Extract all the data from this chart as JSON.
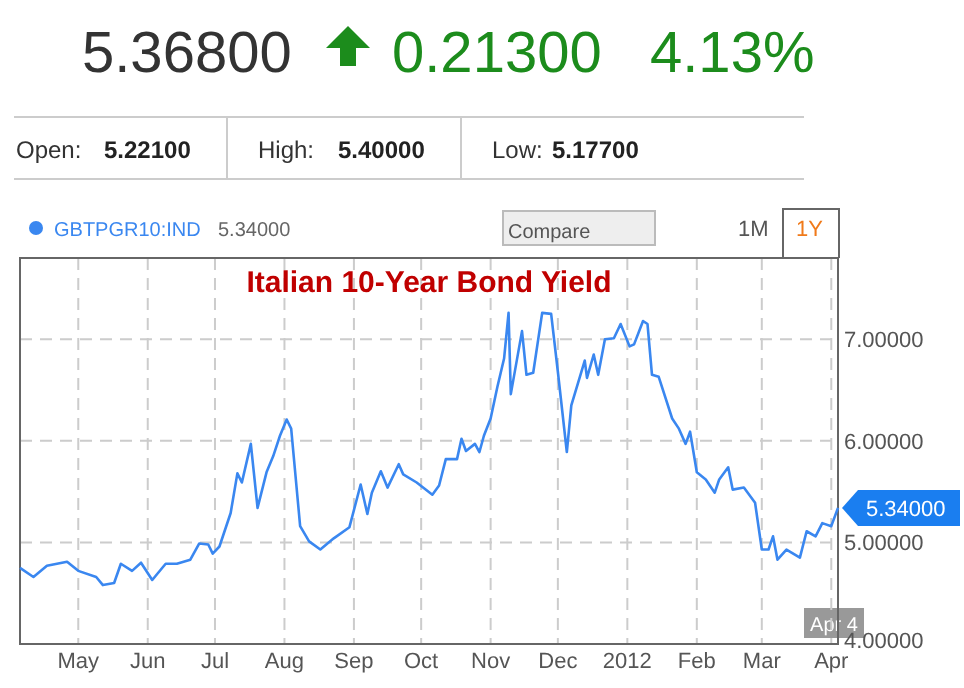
{
  "chart_data": {
    "type": "line",
    "title": "Italian 10-Year Bond Yield",
    "x": [
      "2011-04-05",
      "2011-04-11",
      "2011-04-17",
      "2011-04-26",
      "2011-05-01",
      "2011-05-09",
      "2011-05-12",
      "2011-05-17",
      "2011-05-20",
      "2011-05-25",
      "2011-05-29",
      "2011-06-03",
      "2011-06-09",
      "2011-06-14",
      "2011-06-20",
      "2011-06-24",
      "2011-06-28",
      "2011-06-30",
      "2011-07-03",
      "2011-07-08",
      "2011-07-11",
      "2011-07-13",
      "2011-07-17",
      "2011-07-20",
      "2011-07-24",
      "2011-07-27",
      "2011-07-30",
      "2011-08-02",
      "2011-08-04",
      "2011-08-08",
      "2011-08-12",
      "2011-08-17",
      "2011-08-23",
      "2011-08-30",
      "2011-09-04",
      "2011-09-07",
      "2011-09-09",
      "2011-09-13",
      "2011-09-16",
      "2011-09-21",
      "2011-09-23",
      "2011-09-29",
      "2011-10-06",
      "2011-10-09",
      "2011-10-12",
      "2011-10-17",
      "2011-10-19",
      "2011-10-21",
      "2011-10-25",
      "2011-10-27",
      "2011-10-29",
      "2011-11-01",
      "2011-11-04",
      "2011-11-07",
      "2011-11-09",
      "2011-11-10",
      "2011-11-15",
      "2011-11-17",
      "2011-11-20",
      "2011-11-24",
      "2011-11-28",
      "2011-12-01",
      "2011-12-05",
      "2011-12-07",
      "2011-12-13",
      "2011-12-14",
      "2011-12-17",
      "2011-12-19",
      "2011-12-22",
      "2011-12-26",
      "2011-12-29",
      "2012-01-02",
      "2012-01-04",
      "2012-01-08",
      "2012-01-10",
      "2012-01-12",
      "2012-01-15",
      "2012-01-21",
      "2012-01-24",
      "2012-01-27",
      "2012-01-29",
      "2012-02-01",
      "2012-02-05",
      "2012-02-09",
      "2012-02-11",
      "2012-02-15",
      "2012-02-17",
      "2012-02-22",
      "2012-02-27",
      "2012-03-01",
      "2012-03-04",
      "2012-03-06",
      "2012-03-08",
      "2012-03-12",
      "2012-03-18",
      "2012-03-21",
      "2012-03-25",
      "2012-03-28",
      "2012-04-01",
      "2012-04-04"
    ],
    "series": [
      {
        "name": "GBTPGR10:IND",
        "color": "#3a87f0",
        "values": [
          4.75,
          4.66,
          4.77,
          4.81,
          4.72,
          4.66,
          4.58,
          4.6,
          4.79,
          4.72,
          4.8,
          4.63,
          4.79,
          4.79,
          4.83,
          4.99,
          4.98,
          4.89,
          4.96,
          5.29,
          5.68,
          5.59,
          5.97,
          5.34,
          5.69,
          5.85,
          6.05,
          6.21,
          6.12,
          5.16,
          5.01,
          4.93,
          5.04,
          5.15,
          5.57,
          5.28,
          5.49,
          5.7,
          5.54,
          5.77,
          5.67,
          5.59,
          5.47,
          5.56,
          5.82,
          5.82,
          6.02,
          5.9,
          5.97,
          5.89,
          6.05,
          6.22,
          6.53,
          6.81,
          7.26,
          6.46,
          7.08,
          6.65,
          6.67,
          7.26,
          7.25,
          6.68,
          5.89,
          6.35,
          6.79,
          6.62,
          6.85,
          6.65,
          7.0,
          7.01,
          7.15,
          6.93,
          6.95,
          7.18,
          7.15,
          6.65,
          6.63,
          6.22,
          6.12,
          5.97,
          6.09,
          5.69,
          5.62,
          5.49,
          5.62,
          5.74,
          5.52,
          5.54,
          5.39,
          4.93,
          4.93,
          5.06,
          4.83,
          4.93,
          4.85,
          5.11,
          5.06,
          5.19,
          5.16,
          5.34
        ]
      }
    ],
    "xlim": [
      "2011-04-05",
      "2012-04-04"
    ],
    "xticks": [
      {
        "value": "2011-05-01",
        "label": "May"
      },
      {
        "value": "2011-06-01",
        "label": "Jun"
      },
      {
        "value": "2011-07-01",
        "label": "Jul"
      },
      {
        "value": "2011-08-01",
        "label": "Aug"
      },
      {
        "value": "2011-09-01",
        "label": "Sep"
      },
      {
        "value": "2011-10-01",
        "label": "Oct"
      },
      {
        "value": "2011-11-01",
        "label": "Nov"
      },
      {
        "value": "2011-12-01",
        "label": "Dec"
      },
      {
        "value": "2012-01-01",
        "label": "2012"
      },
      {
        "value": "2012-02-01",
        "label": "Feb"
      },
      {
        "value": "2012-03-01",
        "label": "Mar"
      },
      {
        "value": "2012-04-01",
        "label": "Apr"
      }
    ],
    "ylim": [
      4,
      7.8
    ],
    "yticks": [
      {
        "value": 4,
        "label": "4.00000"
      },
      {
        "value": 5,
        "label": "5.00000"
      },
      {
        "value": 6,
        "label": "6.00000"
      },
      {
        "value": 7,
        "label": "7.00000"
      }
    ],
    "grid": true,
    "legend": "top left",
    "marker": "none",
    "line_style": "solid",
    "annotations": [
      "5.36800",
      "0.21300",
      "4.13%",
      "Open:",
      "5.22100",
      "High:",
      "5.40000",
      "Low:",
      "5.17700",
      "5.34000",
      "Compare",
      "1M",
      "1Y",
      "Apr 4",
      {
        "text": "5.34000",
        "x": "2012-04-04",
        "y": 5.34
      }
    ]
  }
}
